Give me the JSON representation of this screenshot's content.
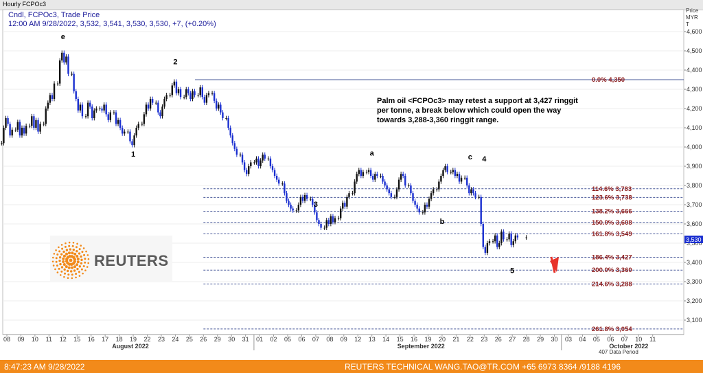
{
  "window_title": "Hourly FCPOc3",
  "header": {
    "line1": "Cndl, FCPOc3, Trade Price",
    "line2": "12:00 AM 9/28/2022, 3,532, 3,541, 3,530, 3,530, +7, (+0.20%)"
  },
  "colors": {
    "up": "#111111",
    "down": "#1a2fd0",
    "fib_text": "#8b1a1a",
    "fib_line": "#4a5a9a",
    "footer": "#f28a1a",
    "arrow": "#e8332a",
    "brand": "#f28a1a"
  },
  "chart_data": {
    "type": "candlestick",
    "title": "",
    "ylabel": "Price MYR T",
    "ylim": [
      3000,
      4700
    ],
    "y_ticks": [
      3100,
      3200,
      3300,
      3400,
      3500,
      3600,
      3700,
      3800,
      3900,
      4000,
      4100,
      4200,
      4300,
      4400,
      4500,
      4600
    ],
    "y_tick_labels": [
      "3,100",
      "3,200",
      "3,300",
      "3,400",
      "3,500",
      "3,600",
      "3,700",
      "3,800",
      "3,900",
      "4,000",
      "4,100",
      "4,200",
      "4,300",
      "4,400",
      "4,500",
      "4,600"
    ],
    "x_day_labels": [
      "08",
      "09",
      "10",
      "11",
      "12",
      "15",
      "16",
      "17",
      "18",
      "19",
      "22",
      "23",
      "24",
      "25",
      "26",
      "29",
      "30",
      "31",
      "01",
      "02",
      "05",
      "06",
      "07",
      "08",
      "09",
      "12",
      "13",
      "14",
      "15",
      "16",
      "19",
      "20",
      "21",
      "22",
      "23",
      "26",
      "27",
      "28",
      "29",
      "30",
      "03",
      "04",
      "05",
      "06",
      "07",
      "10",
      "11"
    ],
    "months": [
      "August 2022",
      "September 2022",
      "October 2022"
    ],
    "current_price": "3,530",
    "annotation": [
      "Palm oil <FCPOc3> may retest a support at 3,427 ringgit",
      " per tonne, a break below which could open the way",
      "towards 3,288-3,360 ringgit range."
    ],
    "wave_labels": [
      {
        "text": "e",
        "x": "08/12",
        "y": 4560
      },
      {
        "text": "1",
        "x": "08/19",
        "y": 3950
      },
      {
        "text": "2",
        "x": "08/24",
        "y": 4430
      },
      {
        "text": "3",
        "x": "09/07",
        "y": 3690
      },
      {
        "text": "a",
        "x": "09/13",
        "y": 3955
      },
      {
        "text": "b",
        "x": "09/20",
        "y": 3600
      },
      {
        "text": "c",
        "x": "09/22",
        "y": 3935
      },
      {
        "text": "4",
        "x": "09/23",
        "y": 3925
      },
      {
        "text": "5",
        "x": "09/27",
        "y": 3345
      }
    ],
    "fib_levels": [
      {
        "label": "0.0%",
        "value": "4,350",
        "price": 4350
      },
      {
        "label": "114.6%",
        "value": "3,783",
        "price": 3783
      },
      {
        "label": "123.6%",
        "value": "3,738",
        "price": 3738
      },
      {
        "label": "138.2%",
        "value": "3,666",
        "price": 3666
      },
      {
        "label": "150.0%",
        "value": "3,608",
        "price": 3608
      },
      {
        "label": "161.8%",
        "value": "3,549",
        "price": 3549
      },
      {
        "label": "186.4%",
        "value": "3,427",
        "price": 3427
      },
      {
        "label": "200.0%",
        "value": "3,360",
        "price": 3360
      },
      {
        "label": "214.6%",
        "value": "3,288",
        "price": 3288
      },
      {
        "label": "261.8%",
        "value": "3,054",
        "price": 3054
      }
    ],
    "series": [
      {
        "date": "08/08",
        "values": [
          4020,
          4100,
          4150,
          4120,
          4060,
          4090
        ]
      },
      {
        "date": "08/09",
        "values": [
          4090,
          4130,
          4060,
          4100,
          4070,
          4110
        ]
      },
      {
        "date": "08/10",
        "values": [
          4110,
          4160,
          4100,
          4140,
          4080,
          4120
        ]
      },
      {
        "date": "08/11",
        "values": [
          4120,
          4200,
          4230,
          4270,
          4250,
          4330
        ]
      },
      {
        "date": "08/12",
        "values": [
          4330,
          4450,
          4490,
          4440,
          4470,
          4380
        ]
      },
      {
        "date": "08/15",
        "values": [
          4380,
          4290,
          4250,
          4190,
          4220,
          4160
        ]
      },
      {
        "date": "08/16",
        "values": [
          4160,
          4230,
          4210,
          4150,
          4190,
          4200
        ]
      },
      {
        "date": "08/17",
        "values": [
          4200,
          4190,
          4220,
          4170,
          4140,
          4180
        ]
      },
      {
        "date": "08/18",
        "values": [
          4180,
          4120,
          4140,
          4100,
          4070,
          4080
        ]
      },
      {
        "date": "08/19",
        "values": [
          4080,
          4030,
          4010,
          4060,
          4100,
          4120
        ]
      },
      {
        "date": "08/22",
        "values": [
          4120,
          4170,
          4220,
          4200,
          4250,
          4230
        ]
      },
      {
        "date": "08/23",
        "values": [
          4230,
          4180,
          4160,
          4210,
          4250,
          4270
        ]
      },
      {
        "date": "08/24",
        "values": [
          4270,
          4320,
          4340,
          4280,
          4300,
          4260
        ]
      },
      {
        "date": "08/25",
        "values": [
          4260,
          4300,
          4280,
          4250,
          4290,
          4270
        ]
      },
      {
        "date": "08/26",
        "values": [
          4270,
          4310,
          4260,
          4230,
          4270,
          4280
        ]
      },
      {
        "date": "08/29",
        "values": [
          4280,
          4240,
          4200,
          4220,
          4180,
          4150
        ]
      },
      {
        "date": "08/30",
        "values": [
          4150,
          4100,
          4060,
          4020,
          3990,
          3960
        ]
      },
      {
        "date": "08/31",
        "values": [
          3960,
          3920,
          3880,
          3860,
          3900,
          3920
        ]
      },
      {
        "date": "09/01",
        "values": [
          3920,
          3940,
          3900,
          3930,
          3960,
          3940
        ]
      },
      {
        "date": "09/02",
        "values": [
          3940,
          3900,
          3880,
          3850,
          3830,
          3810
        ]
      },
      {
        "date": "09/05",
        "values": [
          3810,
          3760,
          3720,
          3700,
          3680,
          3670
        ]
      },
      {
        "date": "09/06",
        "values": [
          3670,
          3700,
          3740,
          3720,
          3750,
          3730
        ]
      },
      {
        "date": "09/07",
        "values": [
          3730,
          3700,
          3660,
          3620,
          3600,
          3580
        ]
      },
      {
        "date": "09/08",
        "values": [
          3580,
          3620,
          3600,
          3640,
          3610,
          3630
        ]
      },
      {
        "date": "09/09",
        "values": [
          3630,
          3680,
          3710,
          3690,
          3740,
          3760
        ]
      },
      {
        "date": "09/12",
        "values": [
          3760,
          3820,
          3860,
          3880,
          3850,
          3870
        ]
      },
      {
        "date": "09/13",
        "values": [
          3870,
          3880,
          3850,
          3830,
          3860,
          3850
        ]
      },
      {
        "date": "09/14",
        "values": [
          3850,
          3820,
          3800,
          3780,
          3760,
          3740
        ]
      },
      {
        "date": "09/15",
        "values": [
          3740,
          3780,
          3830,
          3860,
          3850,
          3800
        ]
      },
      {
        "date": "09/16",
        "values": [
          3800,
          3760,
          3720,
          3700,
          3680,
          3660
        ]
      },
      {
        "date": "09/19",
        "values": [
          3660,
          3700,
          3690,
          3730,
          3760,
          3780
        ]
      },
      {
        "date": "09/20",
        "values": [
          3780,
          3820,
          3850,
          3880,
          3900,
          3870
        ]
      },
      {
        "date": "09/21",
        "values": [
          3870,
          3880,
          3850,
          3860,
          3820,
          3840
        ]
      },
      {
        "date": "09/22",
        "values": [
          3840,
          3800,
          3760,
          3780,
          3760,
          3740
        ]
      },
      {
        "date": "09/23",
        "values": [
          3740,
          3600,
          3480,
          3450,
          3500,
          3510
        ]
      },
      {
        "date": "09/26",
        "values": [
          3510,
          3540,
          3480,
          3500,
          3560,
          3520
        ]
      },
      {
        "date": "09/27",
        "values": [
          3520,
          3550,
          3490,
          3510,
          3540,
          3530
        ]
      },
      {
        "date": "09/28",
        "values": [
          3530
        ]
      }
    ]
  },
  "brand": {
    "name": "REUTERS"
  },
  "footer": {
    "timestamp": "8:47:23 AM 9/28/2022",
    "contact": "REUTERS TECHNICAL  WANG.TAO@TR.COM  +65 6973 8364 /9188 4196"
  },
  "status_label": "407 Data Period"
}
